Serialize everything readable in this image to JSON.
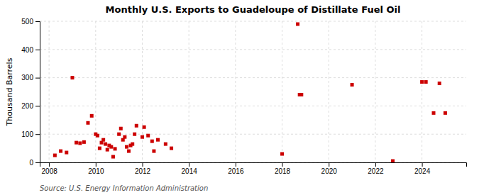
{
  "chart_data": {
    "type": "scatter",
    "title": "Monthly U.S. Exports to Guadeloupe of Distillate Fuel Oil",
    "ylabel": "Thousand Barrels",
    "annotations": [
      "Source: U.S. Energy Information Administration"
    ],
    "color": "#cc0000",
    "marker": "square",
    "grid": true,
    "xlim": [
      2007.6,
      2025.9
    ],
    "ylim": [
      0,
      500
    ],
    "xticks": [
      2008,
      2010,
      2012,
      2014,
      2016,
      2018,
      2020,
      2022,
      2024
    ],
    "yticks": [
      0,
      100,
      200,
      300,
      400,
      500
    ],
    "x": [
      2008.25,
      2008.5,
      2008.75,
      2009.0,
      2009.17,
      2009.33,
      2009.5,
      2009.67,
      2009.83,
      2010.0,
      2010.08,
      2010.17,
      2010.25,
      2010.33,
      2010.42,
      2010.5,
      2010.58,
      2010.67,
      2010.75,
      2010.83,
      2011.0,
      2011.08,
      2011.17,
      2011.25,
      2011.33,
      2011.42,
      2011.5,
      2011.58,
      2011.67,
      2011.75,
      2012.0,
      2012.08,
      2012.25,
      2012.42,
      2012.5,
      2012.67,
      2013.0,
      2013.25,
      2018.0,
      2018.67,
      2018.75,
      2018.83,
      2021.0,
      2022.75,
      2024.0,
      2024.17,
      2024.5,
      2024.75,
      2025.0
    ],
    "values": [
      25,
      40,
      35,
      300,
      70,
      68,
      72,
      140,
      165,
      100,
      95,
      50,
      70,
      80,
      65,
      45,
      60,
      55,
      20,
      48,
      100,
      120,
      80,
      90,
      55,
      40,
      60,
      65,
      100,
      130,
      90,
      125,
      95,
      75,
      40,
      80,
      65,
      50,
      30,
      490,
      240,
      240,
      275,
      5,
      285,
      285,
      175,
      280,
      175
    ]
  }
}
